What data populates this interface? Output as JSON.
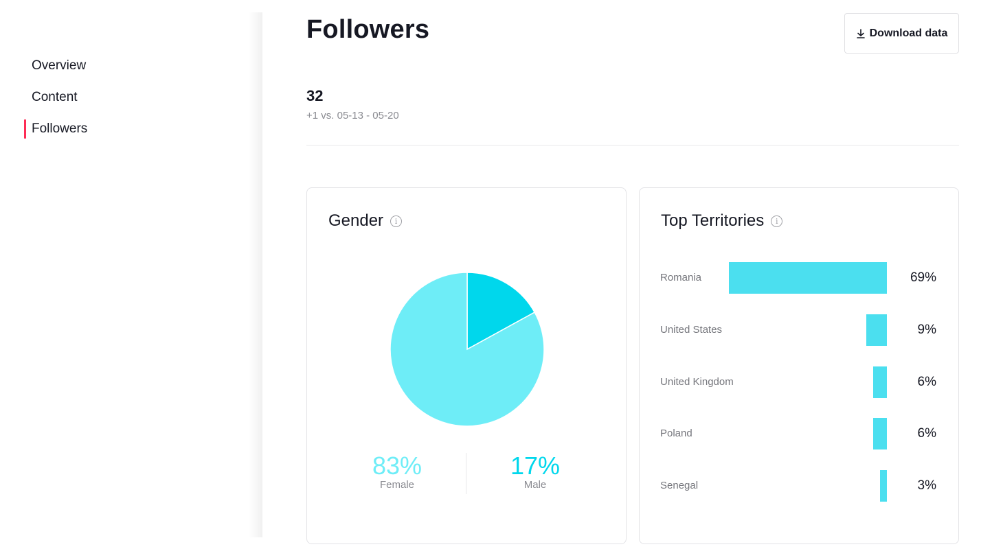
{
  "sidebar": {
    "items": [
      {
        "label": "Overview",
        "active": false
      },
      {
        "label": "Content",
        "active": false
      },
      {
        "label": "Followers",
        "active": true
      }
    ]
  },
  "header": {
    "title": "Followers",
    "download_label": "Download data",
    "download_icon": "download-icon"
  },
  "summary": {
    "value": "32",
    "comparison": "+1 vs. 05-13 - 05-20"
  },
  "colors": {
    "accent": "#fe2c55",
    "female": "#6eedf7",
    "male": "#00d7ec",
    "bar": "#4bdfef"
  },
  "gender": {
    "title": "Gender",
    "info_icon": "info-icon",
    "female_pct": "83%",
    "female_label": "Female",
    "male_pct": "17%",
    "male_label": "Male"
  },
  "territories": {
    "title": "Top Territories",
    "info_icon": "info-icon",
    "items": [
      {
        "name": "Romania",
        "pct": "69%"
      },
      {
        "name": "United States",
        "pct": "9%"
      },
      {
        "name": "United Kingdom",
        "pct": "6%"
      },
      {
        "name": "Poland",
        "pct": "6%"
      },
      {
        "name": "Senegal",
        "pct": "3%"
      }
    ]
  },
  "chart_data": [
    {
      "type": "pie",
      "categories": [
        "Female",
        "Male"
      ],
      "values": [
        83,
        17
      ]
    },
    {
      "type": "bar",
      "categories": [
        "Romania",
        "United States",
        "United Kingdom",
        "Poland",
        "Senegal"
      ],
      "values": [
        69,
        9,
        6,
        6,
        3
      ]
    }
  ]
}
